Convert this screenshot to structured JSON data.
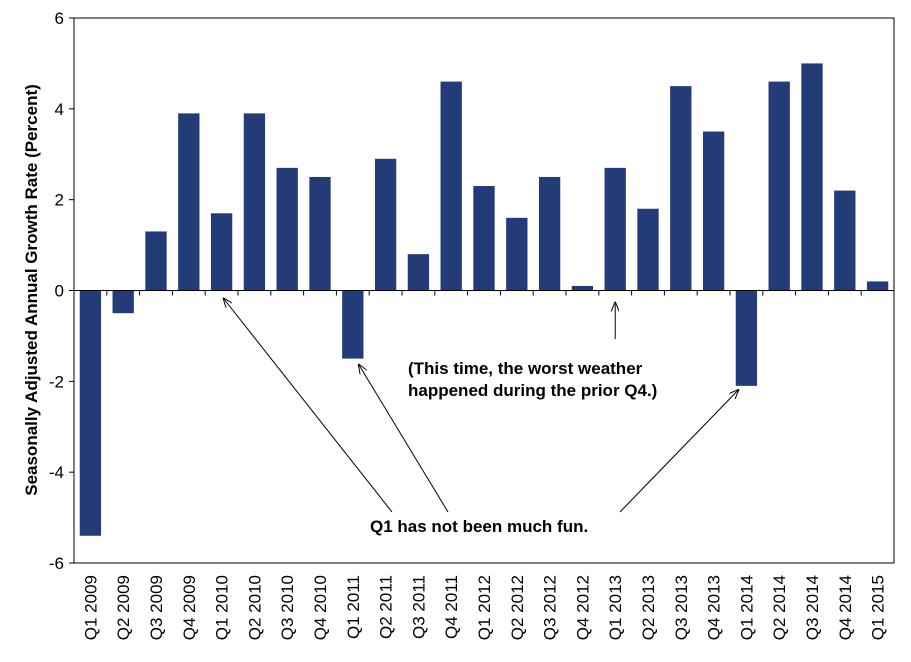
{
  "chart_data": {
    "type": "bar",
    "title": "",
    "xlabel": "",
    "ylabel": "Seasonally Adjusted Annual Growth Rate (Percent)",
    "ylim": [
      -6,
      6
    ],
    "yticks": [
      6,
      4,
      2,
      0,
      -2,
      -4,
      -6
    ],
    "grid": false,
    "legend": "none",
    "bar_color": "#233c78",
    "categories": [
      "Q1 2009",
      "Q2 2009",
      "Q3 2009",
      "Q4 2009",
      "Q1 2010",
      "Q2 2010",
      "Q3 2010",
      "Q4 2010",
      "Q1 2011",
      "Q2 2011",
      "Q3 2011",
      "Q4 2011",
      "Q1 2012",
      "Q2 2012",
      "Q3 2012",
      "Q4 2012",
      "Q1 2013",
      "Q2 2013",
      "Q3 2013",
      "Q4 2013",
      "Q1 2014",
      "Q2 2014",
      "Q3 2014",
      "Q4 2014",
      "Q1 2015"
    ],
    "values": [
      -5.4,
      -0.5,
      1.3,
      3.9,
      1.7,
      3.9,
      2.7,
      2.5,
      -1.5,
      2.9,
      0.8,
      4.6,
      2.3,
      1.6,
      2.5,
      0.1,
      2.7,
      1.8,
      4.5,
      3.5,
      -2.1,
      4.6,
      5.0,
      2.2,
      0.2
    ],
    "annotations": [
      {
        "lines": [
          "(This time, the worst weather",
          "happened during the prior Q4.)"
        ],
        "points_to": [
          "Q1 2013"
        ]
      },
      {
        "lines": [
          "Q1 has not been much fun."
        ],
        "points_to": [
          "Q1 2010",
          "Q1 2011",
          "Q1 2014"
        ]
      }
    ]
  }
}
